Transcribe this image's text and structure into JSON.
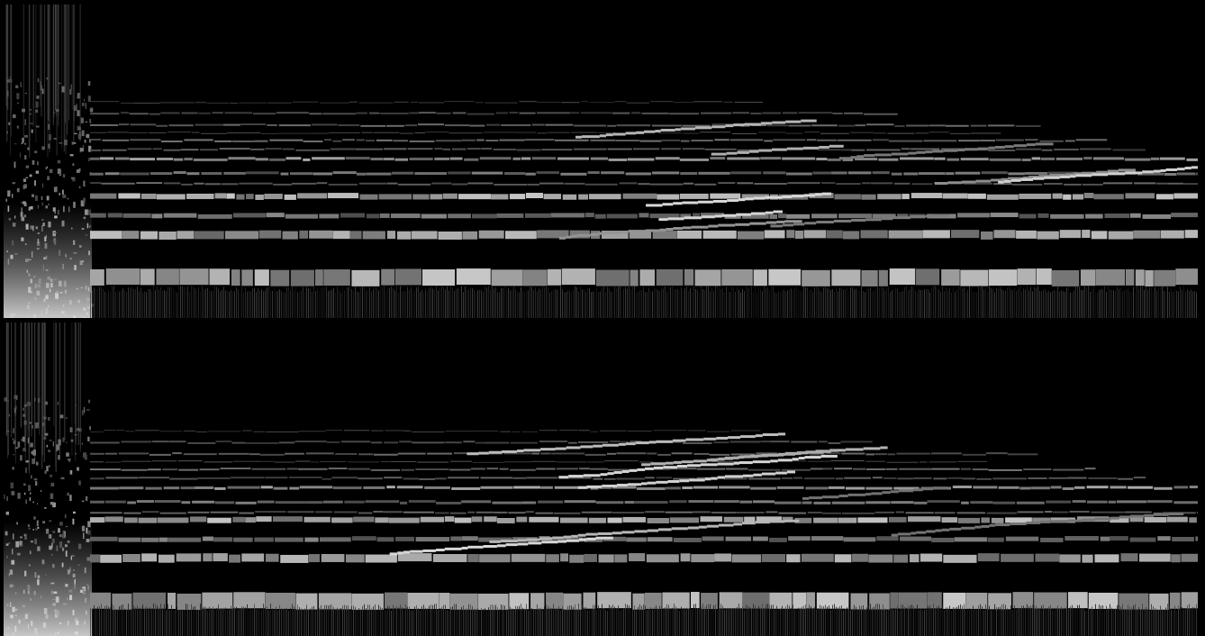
{
  "spectrogram": {
    "channels": [
      {
        "id": "left",
        "seed": 11,
        "band_shift": 0
      },
      {
        "id": "right",
        "seed": 29,
        "band_shift": 12
      }
    ],
    "colors": {
      "background": "#000000",
      "foreground": "#ffffff"
    }
  }
}
